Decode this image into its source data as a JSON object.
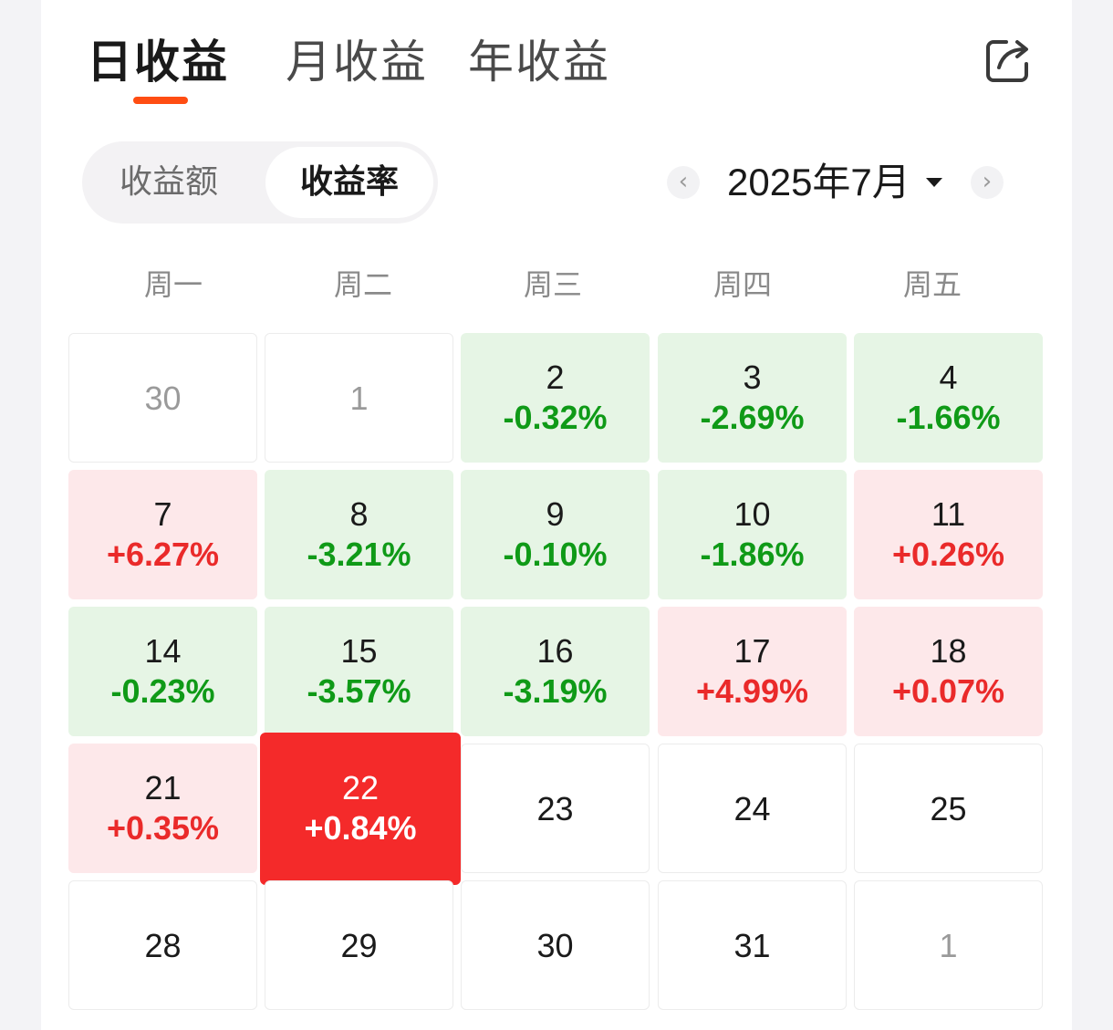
{
  "tabs": [
    {
      "label": "日收益",
      "active": true
    },
    {
      "label": "月收益",
      "active": false
    },
    {
      "label": "年收益",
      "active": false
    }
  ],
  "icons": {
    "share": "share-icon",
    "prev": "chevron-left-icon",
    "next": "chevron-right-icon",
    "caret": "caret-down-icon"
  },
  "segment": {
    "amount_label": "收益额",
    "rate_label": "收益率",
    "selected": "收益率"
  },
  "month_selector": {
    "label": "2025年7月",
    "prev_glyph": "‹",
    "next_glyph": "›"
  },
  "weekdays": [
    "周一",
    "周二",
    "周三",
    "周四",
    "周五"
  ],
  "colors": {
    "accent": "#ff4d12",
    "up_text": "#ea2a2a",
    "up_bg": "#fde8ea",
    "down_text": "#0f9a17",
    "down_bg": "#e6f5e5",
    "today_bg": "#f42a2a"
  },
  "calendar": [
    [
      {
        "day": "30",
        "pct": "",
        "state": "muted"
      },
      {
        "day": "1",
        "pct": "",
        "state": "muted"
      },
      {
        "day": "2",
        "pct": "-0.32%",
        "state": "down"
      },
      {
        "day": "3",
        "pct": "-2.69%",
        "state": "down"
      },
      {
        "day": "4",
        "pct": "-1.66%",
        "state": "down"
      }
    ],
    [
      {
        "day": "7",
        "pct": "+6.27%",
        "state": "up"
      },
      {
        "day": "8",
        "pct": "-3.21%",
        "state": "down"
      },
      {
        "day": "9",
        "pct": "-0.10%",
        "state": "down"
      },
      {
        "day": "10",
        "pct": "-1.86%",
        "state": "down"
      },
      {
        "day": "11",
        "pct": "+0.26%",
        "state": "up"
      }
    ],
    [
      {
        "day": "14",
        "pct": "-0.23%",
        "state": "down"
      },
      {
        "day": "15",
        "pct": "-3.57%",
        "state": "down"
      },
      {
        "day": "16",
        "pct": "-3.19%",
        "state": "down"
      },
      {
        "day": "17",
        "pct": "+4.99%",
        "state": "up"
      },
      {
        "day": "18",
        "pct": "+0.07%",
        "state": "up"
      }
    ],
    [
      {
        "day": "21",
        "pct": "+0.35%",
        "state": "up"
      },
      {
        "day": "22",
        "pct": "+0.84%",
        "state": "today"
      },
      {
        "day": "23",
        "pct": "",
        "state": "normal"
      },
      {
        "day": "24",
        "pct": "",
        "state": "normal"
      },
      {
        "day": "25",
        "pct": "",
        "state": "normal"
      }
    ],
    [
      {
        "day": "28",
        "pct": "",
        "state": "normal"
      },
      {
        "day": "29",
        "pct": "",
        "state": "normal"
      },
      {
        "day": "30",
        "pct": "",
        "state": "normal"
      },
      {
        "day": "31",
        "pct": "",
        "state": "normal"
      },
      {
        "day": "1",
        "pct": "",
        "state": "muted"
      }
    ]
  ]
}
